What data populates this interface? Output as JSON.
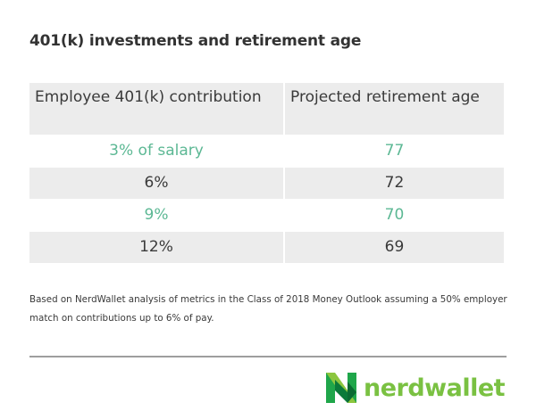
{
  "title": "401(k) investments and retirement age",
  "table": {
    "headers": [
      "Employee 401(k) contribution",
      "Projected retirement age"
    ],
    "rows": [
      {
        "contribution": "3% of salary",
        "age": "77",
        "highlight": true
      },
      {
        "contribution": "6%",
        "age": "72",
        "highlight": false
      },
      {
        "contribution": "9%",
        "age": "70",
        "highlight": true
      },
      {
        "contribution": "12%",
        "age": "69",
        "highlight": false
      }
    ]
  },
  "note": "Based on NerdWallet analysis of metrics in the Class  of 2018 Money Outlook assuming a 50% employer match on contributions up to 6% of pay.",
  "brand": {
    "name": "nerdwallet",
    "color": "#7ac142",
    "highlight_color": "#5cb894"
  }
}
